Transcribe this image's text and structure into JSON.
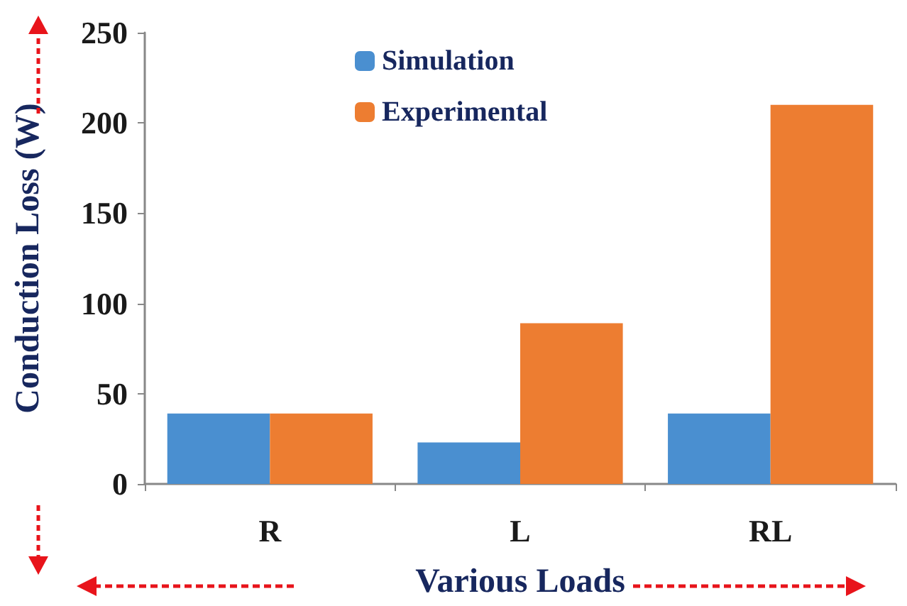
{
  "chart_data": {
    "type": "bar",
    "xlabel": "Various Loads",
    "ylabel": "Conduction Loss (W)",
    "categories": [
      "R",
      "L",
      "RL"
    ],
    "series": [
      {
        "name": "Simulation",
        "color": "#4a8fd0",
        "values": [
          39,
          23,
          39
        ]
      },
      {
        "name": "Experimental",
        "color": "#ed7d31",
        "values": [
          39,
          89,
          210
        ]
      }
    ],
    "ylim": [
      0,
      250
    ],
    "yticks": [
      0,
      50,
      100,
      150,
      200,
      250
    ],
    "grid": false,
    "legend": "top"
  }
}
